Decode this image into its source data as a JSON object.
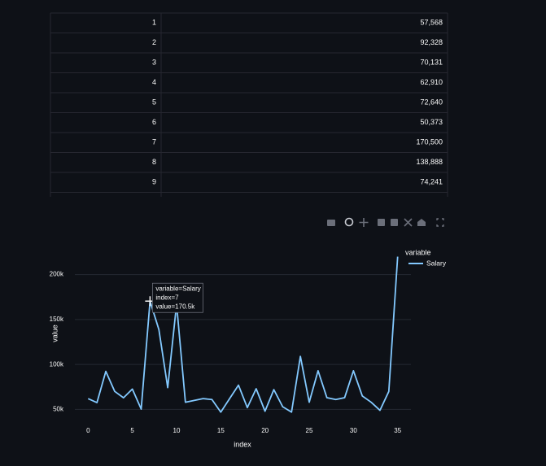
{
  "table": {
    "rows": [
      [
        1,
        "57,568"
      ],
      [
        2,
        "92,328"
      ],
      [
        3,
        "70,131"
      ],
      [
        4,
        "62,910"
      ],
      [
        5,
        "72,640"
      ],
      [
        6,
        "50,373"
      ],
      [
        7,
        "170,500"
      ],
      [
        8,
        "138,888"
      ],
      [
        9,
        "74,241"
      ]
    ]
  },
  "chart_data": {
    "type": "line",
    "x": [
      0,
      1,
      2,
      3,
      4,
      5,
      6,
      7,
      8,
      9,
      10,
      11,
      12,
      13,
      14,
      15,
      16,
      17,
      18,
      19,
      20,
      21,
      22,
      23,
      24,
      25,
      26,
      27,
      28,
      29,
      30,
      31,
      32,
      33,
      34,
      35
    ],
    "series": [
      {
        "name": "Salary",
        "color": "#83c9ff",
        "values": [
          62000,
          57568,
          92328,
          70131,
          62910,
          72640,
          50373,
          170500,
          138888,
          74241,
          167000,
          58000,
          60000,
          62000,
          61000,
          47000,
          62000,
          77000,
          52000,
          73000,
          48000,
          72000,
          53000,
          47000,
          109000,
          58000,
          93000,
          63000,
          61000,
          63000,
          93000,
          65000,
          58000,
          49000,
          70000,
          220000
        ]
      }
    ],
    "x_label": "index",
    "y_label": "value",
    "legend_title": "variable",
    "xlim": [
      -1.5,
      36.5
    ],
    "ylim": [
      35000,
      225000
    ],
    "xticks": [
      0,
      5,
      10,
      15,
      20,
      25,
      30,
      35
    ],
    "yticks": [
      {
        "value": 50000,
        "label": "50k"
      },
      {
        "value": 100000,
        "label": "100k"
      },
      {
        "value": 150000,
        "label": "150k"
      },
      {
        "value": 200000,
        "label": "200k"
      }
    ],
    "grid": true,
    "tooltip": {
      "index": 7,
      "lines": [
        "variable=Salary",
        "index=7",
        "value=170.5k"
      ]
    }
  }
}
